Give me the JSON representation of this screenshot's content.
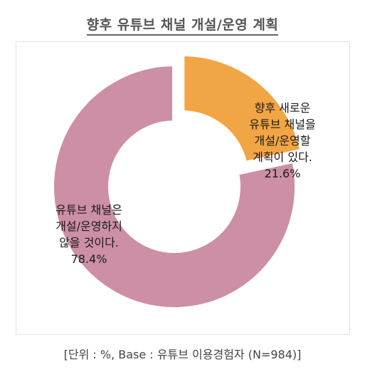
{
  "title": "향후 유튜브 채널 개설/운영 계획",
  "footnote": "[단위 : %, Base : 유튜브 이용경험자 (N=984)]",
  "chart_data": {
    "type": "pie",
    "title": "향후 유튜브 채널 개설/운영 계획",
    "unit": "%",
    "slices": [
      {
        "label_lines": [
          "향후 새로운",
          "유튜브 채널을",
          "개설/운영할",
          "계획이 있다."
        ],
        "value": 21.6,
        "value_label": "21.6%",
        "color": "#F2A544",
        "exploded": true
      },
      {
        "label_lines": [
          "유튜브 채널은",
          "개설/운영하지",
          "않을 것이다."
        ],
        "value": 78.4,
        "value_label": "78.4%",
        "color": "#CC8FA5",
        "exploded": false
      }
    ]
  }
}
